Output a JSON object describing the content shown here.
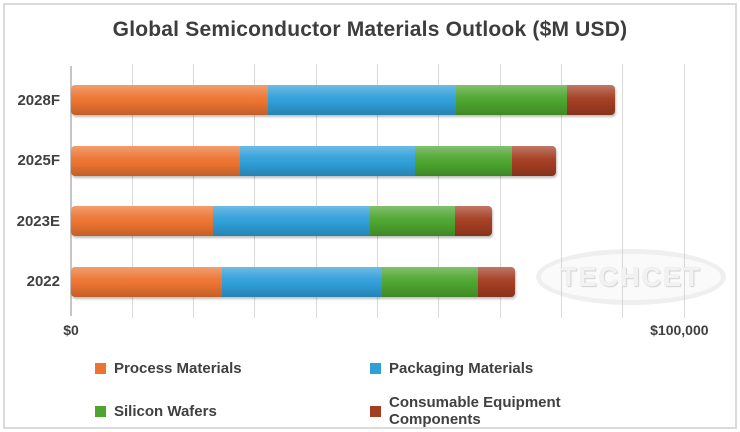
{
  "title": "Global Semiconductor Materials Outlook ($M USD)",
  "watermark": "TECHCET",
  "axis": {
    "x_min_label": "$0",
    "x_max_label": "$100,000",
    "x_min": 0,
    "x_max": 100000,
    "gridline_interval": 10000
  },
  "colors": {
    "process_materials": "#EC7430",
    "packaging_materials": "#2F9FD8",
    "silicon_wafers": "#4DA52F",
    "consumable_equipment": "#A33E22",
    "gridline": "#D9D9D9",
    "text": "#404040"
  },
  "chart_data": {
    "type": "bar",
    "orientation": "horizontal",
    "stacked": true,
    "title": "Global Semiconductor Materials Outlook ($M USD)",
    "xlabel": "",
    "ylabel": "",
    "xlim": [
      0,
      100000
    ],
    "x_tick_labels": [
      "$0",
      "$100,000"
    ],
    "grid": "vertical gridlines every 10000",
    "legend_position": "bottom",
    "categories": [
      "2028F",
      "2025F",
      "2023E",
      "2022"
    ],
    "series": [
      {
        "name": "Process Materials",
        "color": "#EC7430",
        "values": [
          32100,
          27600,
          23200,
          24600
        ]
      },
      {
        "name": "Packaging Materials",
        "color": "#2F9FD8",
        "values": [
          30700,
          28500,
          25600,
          26100
        ]
      },
      {
        "name": "Silicon Wafers",
        "color": "#4DA52F",
        "values": [
          18100,
          15800,
          13900,
          15700
        ]
      },
      {
        "name": "Consumable Equipment Components",
        "color": "#A33E22",
        "values": [
          7800,
          7300,
          6000,
          6000
        ]
      }
    ],
    "totals": [
      88700,
      79200,
      68700,
      72400
    ]
  }
}
